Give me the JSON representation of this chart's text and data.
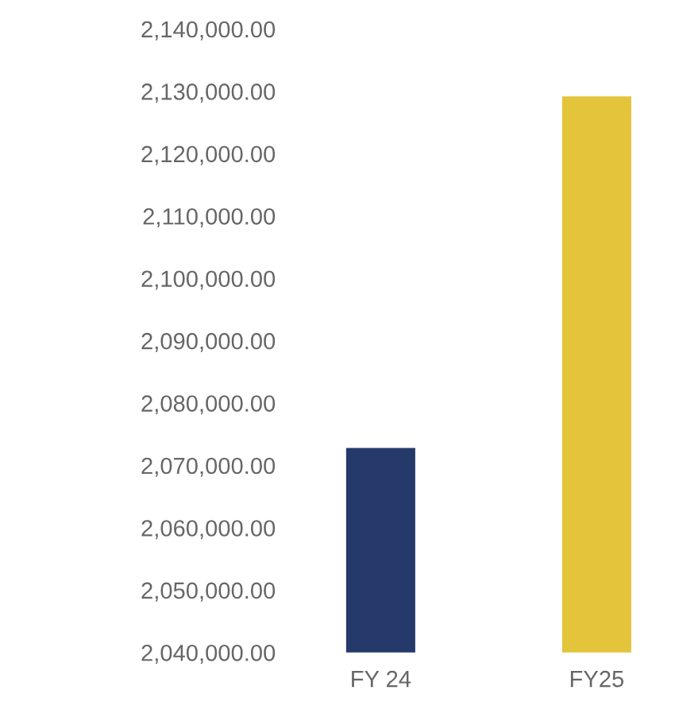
{
  "chart_data": {
    "type": "bar",
    "categories": [
      "FY 24",
      "FY25"
    ],
    "values": [
      2072800,
      2129200
    ],
    "colors": [
      "#253a6b",
      "#e3c43a"
    ],
    "ylim": [
      2040000,
      2140000
    ],
    "yticks": [
      {
        "value": 2040000,
        "label": "2,040,000.00"
      },
      {
        "value": 2050000,
        "label": "2,050,000.00"
      },
      {
        "value": 2060000,
        "label": "2,060,000.00"
      },
      {
        "value": 2070000,
        "label": "2,070,000.00"
      },
      {
        "value": 2080000,
        "label": "2,080,000.00"
      },
      {
        "value": 2090000,
        "label": "2,090,000.00"
      },
      {
        "value": 2100000,
        "label": "2,100,000.00"
      },
      {
        "value": 2110000,
        "label": "2,110,000.00"
      },
      {
        "value": 2120000,
        "label": "2,120,000.00"
      },
      {
        "value": 2130000,
        "label": "2,130,000.00"
      },
      {
        "value": 2140000,
        "label": "2,140,000.00"
      }
    ],
    "grid": false,
    "legend": false
  }
}
